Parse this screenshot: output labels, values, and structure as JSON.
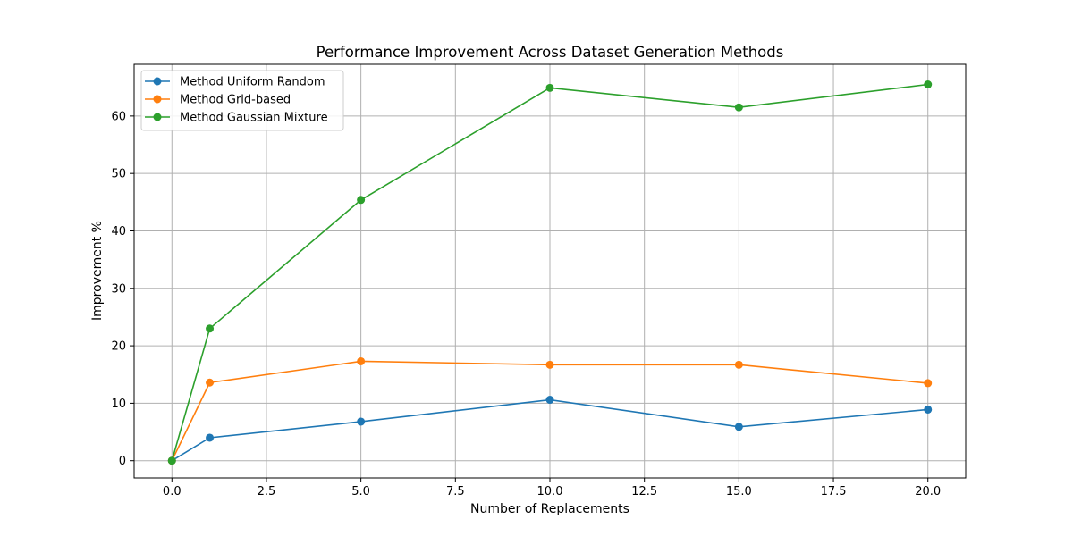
{
  "chart_data": {
    "type": "line",
    "title": "Performance Improvement Across Dataset Generation Methods",
    "xlabel": "Number of Replacements",
    "ylabel": "Improvement %",
    "x": [
      0,
      1,
      5,
      10,
      15,
      20
    ],
    "xlim": [
      -1,
      21
    ],
    "ylim": [
      -3,
      69
    ],
    "xticks": [
      0,
      2.5,
      5,
      7.5,
      10,
      12.5,
      15,
      17.5,
      20
    ],
    "xtick_labels": [
      "0.0",
      "2.5",
      "5.0",
      "7.5",
      "10.0",
      "12.5",
      "15.0",
      "17.5",
      "20.0"
    ],
    "yticks": [
      0,
      10,
      20,
      30,
      40,
      50,
      60
    ],
    "ytick_labels": [
      "0",
      "10",
      "20",
      "30",
      "40",
      "50",
      "60"
    ],
    "grid": true,
    "legend_position": "top-left",
    "series": [
      {
        "name": "Method Uniform Random",
        "color": "#1f77b4",
        "values": [
          0,
          4.0,
          6.8,
          10.6,
          5.9,
          8.9
        ]
      },
      {
        "name": "Method Grid-based",
        "color": "#ff7f0e",
        "values": [
          0,
          13.6,
          17.3,
          16.7,
          16.7,
          13.5
        ]
      },
      {
        "name": "Method Gaussian Mixture",
        "color": "#2ca02c",
        "values": [
          0,
          23.0,
          45.4,
          64.9,
          61.5,
          65.5
        ]
      }
    ]
  }
}
